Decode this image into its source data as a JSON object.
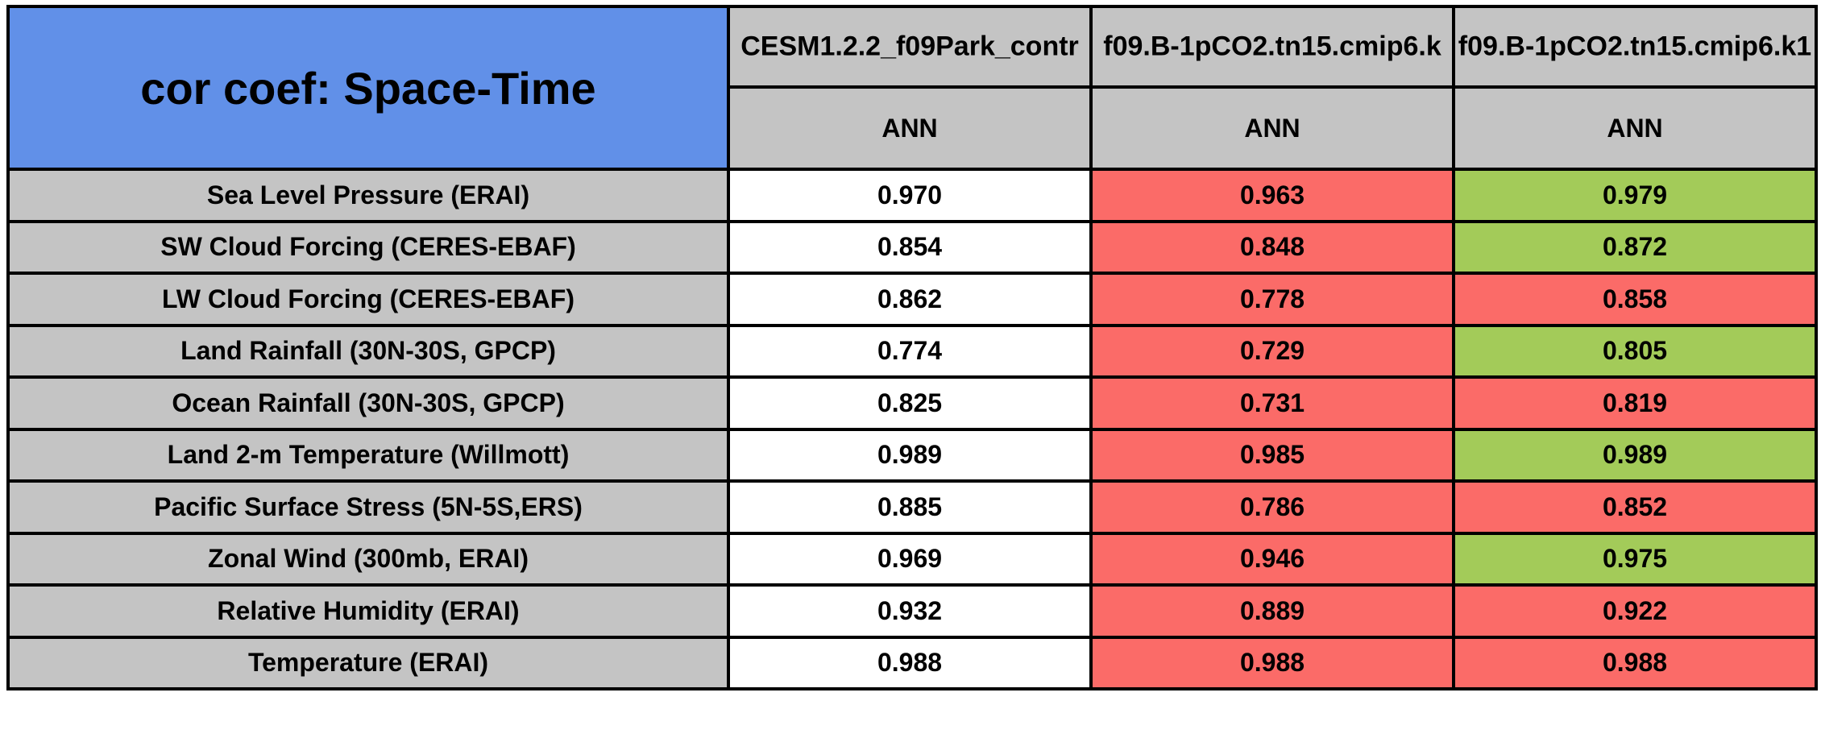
{
  "chart_data": {
    "type": "table",
    "title": "cor coef: Space-Time",
    "columns": [
      "CESM1.2.2_f09Park_contr",
      "f09.B-1pCO2.tn15.cmip6.k",
      "f09.B-1pCO2.tn15.cmip6.k1"
    ],
    "column_sublabels": [
      "ANN",
      "ANN",
      "ANN"
    ],
    "rows": [
      "Sea Level Pressure (ERAI)",
      "SW Cloud Forcing (CERES-EBAF)",
      "LW Cloud Forcing (CERES-EBAF)",
      "Land Rainfall (30N-30S, GPCP)",
      "Ocean Rainfall (30N-30S, GPCP)",
      "Land 2-m Temperature (Willmott)",
      "Pacific Surface Stress (5N-5S,ERS)",
      "Zonal Wind (300mb, ERAI)",
      "Relative Humidity (ERAI)",
      "Temperature (ERAI)"
    ],
    "values": [
      [
        0.97,
        0.963,
        0.979
      ],
      [
        0.854,
        0.848,
        0.872
      ],
      [
        0.862,
        0.778,
        0.858
      ],
      [
        0.774,
        0.729,
        0.805
      ],
      [
        0.825,
        0.731,
        0.819
      ],
      [
        0.989,
        0.985,
        0.989
      ],
      [
        0.885,
        0.786,
        0.852
      ],
      [
        0.969,
        0.946,
        0.975
      ],
      [
        0.932,
        0.889,
        0.922
      ],
      [
        0.988,
        0.988,
        0.988
      ]
    ],
    "display_values": [
      [
        "0.970",
        "0.963",
        "0.979"
      ],
      [
        "0.854",
        "0.848",
        "0.872"
      ],
      [
        "0.862",
        "0.778",
        "0.858"
      ],
      [
        "0.774",
        "0.729",
        "0.805"
      ],
      [
        "0.825",
        "0.731",
        "0.819"
      ],
      [
        "0.989",
        "0.985",
        "0.989"
      ],
      [
        "0.885",
        "0.786",
        "0.852"
      ],
      [
        "0.969",
        "0.946",
        "0.975"
      ],
      [
        "0.932",
        "0.889",
        "0.922"
      ],
      [
        "0.988",
        "0.988",
        "0.988"
      ]
    ],
    "cell_colors": [
      [
        "white",
        "red",
        "green"
      ],
      [
        "white",
        "red",
        "green"
      ],
      [
        "white",
        "red",
        "red"
      ],
      [
        "white",
        "red",
        "green"
      ],
      [
        "white",
        "red",
        "red"
      ],
      [
        "white",
        "red",
        "green"
      ],
      [
        "white",
        "red",
        "red"
      ],
      [
        "white",
        "red",
        "green"
      ],
      [
        "white",
        "red",
        "red"
      ],
      [
        "white",
        "red",
        "red"
      ]
    ],
    "color_map": {
      "white": "#ffffff",
      "red": "#fb6b68",
      "green": "#a3cb59",
      "header_blue": "#6190e8",
      "header_gray": "#c4c4c4",
      "border_black": "#000000"
    },
    "grid": true,
    "legend_position": "none"
  }
}
